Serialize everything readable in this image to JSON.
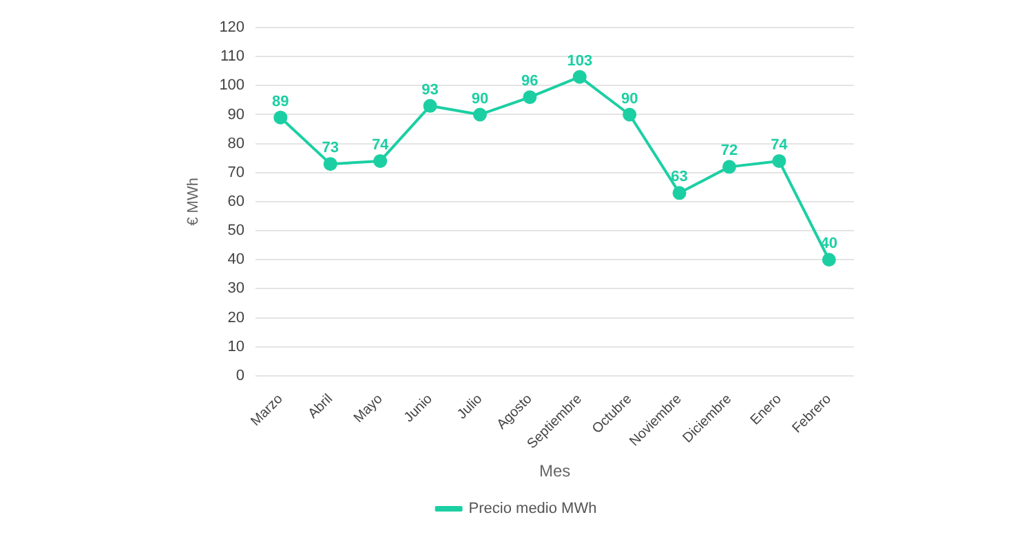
{
  "chart_data": {
    "type": "line",
    "xlabel": "Mes",
    "ylabel": "€ MWh",
    "categories": [
      "Marzo",
      "Abril",
      "Mayo",
      "Junio",
      "Julio",
      "Agosto",
      "Septiembre",
      "Octubre",
      "Noviembre",
      "Diciembre",
      "Enero",
      "Febrero"
    ],
    "series": [
      {
        "name": "Precio medio MWh",
        "color": "#1ccfa3",
        "values": [
          89,
          73,
          74,
          93,
          90,
          96,
          103,
          90,
          63,
          72,
          74,
          40
        ]
      }
    ],
    "ylim": [
      0,
      120
    ],
    "yticks": [
      0,
      10,
      20,
      30,
      40,
      50,
      60,
      70,
      80,
      90,
      100,
      110,
      120
    ],
    "grid": "y",
    "legend": "bottom",
    "marker": "circle",
    "data_labels": true
  }
}
